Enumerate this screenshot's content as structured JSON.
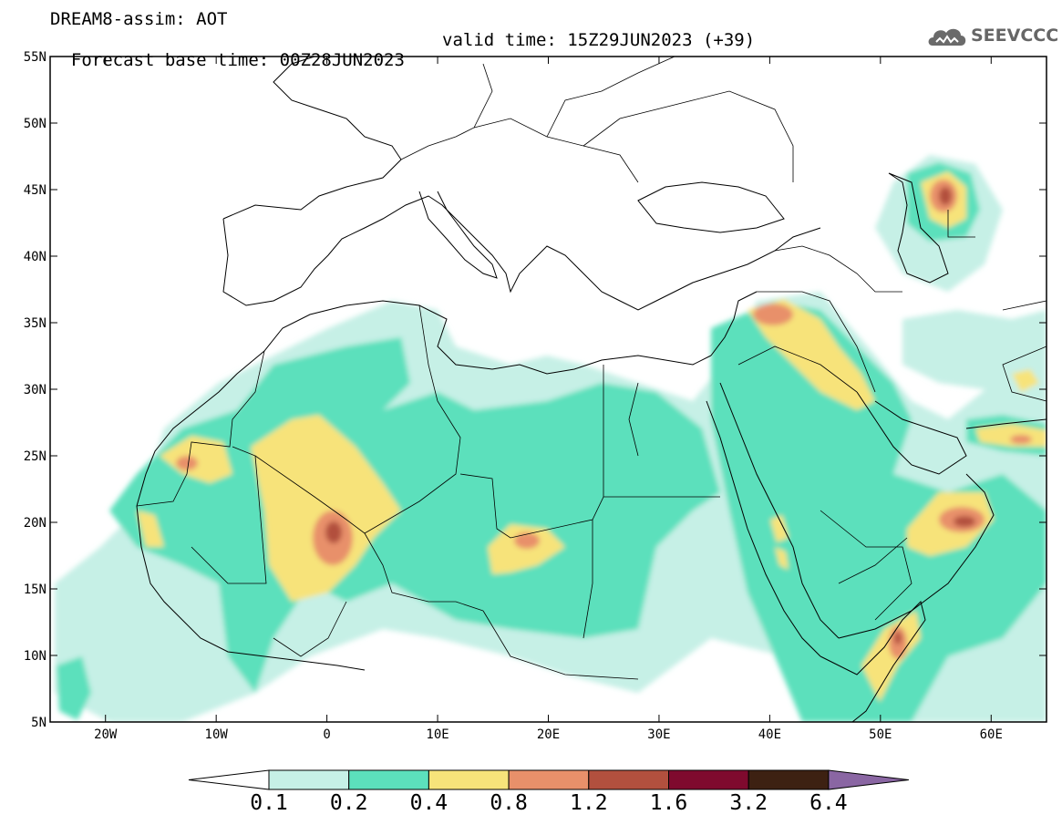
{
  "title": {
    "line1": "DREAM8-assim: AOT",
    "base_time": "Forecast base time: 00Z28JUN2023",
    "valid_time": "valid time: 15Z29JUN2023 (+39)"
  },
  "logo": {
    "text": "SEEVCCC",
    "icon": "cloud-logo-icon"
  },
  "map": {
    "lon_range": [
      -25,
      65
    ],
    "lat_range": [
      5,
      55
    ],
    "lat_ticks": [
      {
        "value": 55,
        "label": "55N"
      },
      {
        "value": 50,
        "label": "50N"
      },
      {
        "value": 45,
        "label": "45N"
      },
      {
        "value": 40,
        "label": "40N"
      },
      {
        "value": 35,
        "label": "35N"
      },
      {
        "value": 30,
        "label": "30N"
      },
      {
        "value": 25,
        "label": "25N"
      },
      {
        "value": 20,
        "label": "20N"
      },
      {
        "value": 15,
        "label": "15N"
      },
      {
        "value": 10,
        "label": "10N"
      },
      {
        "value": 5,
        "label": "5N"
      }
    ],
    "lon_ticks": [
      {
        "value": -20,
        "label": "20W"
      },
      {
        "value": -10,
        "label": "10W"
      },
      {
        "value": 0,
        "label": "0"
      },
      {
        "value": 10,
        "label": "10E"
      },
      {
        "value": 20,
        "label": "20E"
      },
      {
        "value": 30,
        "label": "30E"
      },
      {
        "value": 40,
        "label": "40E"
      },
      {
        "value": 50,
        "label": "50E"
      },
      {
        "value": 60,
        "label": "60E"
      }
    ]
  },
  "colorbar": {
    "levels": [
      "0.1",
      "0.2",
      "0.4",
      "0.8",
      "1.2",
      "1.6",
      "3.2",
      "6.4"
    ],
    "colors": [
      "#ffffff",
      "#c6f0e6",
      "#5ce0bc",
      "#f7e37a",
      "#e8906a",
      "#b2503e",
      "#7f0a2e",
      "#3d2112",
      "#8a66a3"
    ]
  }
}
